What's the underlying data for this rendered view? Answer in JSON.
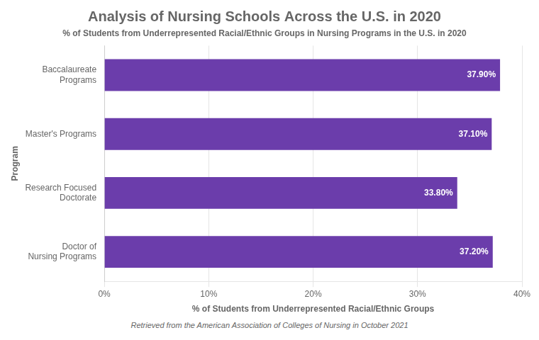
{
  "chart_data": {
    "type": "bar",
    "title": "Analysis of Nursing Schools Across the U.S. in 2020",
    "subtitle": "% of Students from Underrepresented Racial/Ethnic Groups in Nursing Programs in the U.S. in 2020",
    "xlabel": "% of Students from Underrepresented Racial/Ethnic Groups",
    "ylabel": "Program",
    "annotations": [
      "Retrieved from the American Association of Colleges of Nursing in October 2021"
    ],
    "categories": [
      "Baccalaureate\nPrograms",
      "Master's Programs",
      "Research Focused\nDoctorate",
      "Doctor of\nNursing Programs"
    ],
    "values": [
      37.9,
      37.1,
      33.8,
      37.2
    ],
    "value_labels": [
      "37.90%",
      "37.10%",
      "33.80%",
      "37.20%"
    ],
    "color": "#6B3DAB",
    "orientation": "horizontal",
    "data_labels": true,
    "grid": true,
    "xlim": [
      0,
      40
    ],
    "xticks": [
      {
        "value": 0,
        "label": "0%"
      },
      {
        "value": 10,
        "label": "10%"
      },
      {
        "value": 20,
        "label": "20%"
      },
      {
        "value": 30,
        "label": "30%"
      },
      {
        "value": 40,
        "label": "40%"
      }
    ]
  }
}
